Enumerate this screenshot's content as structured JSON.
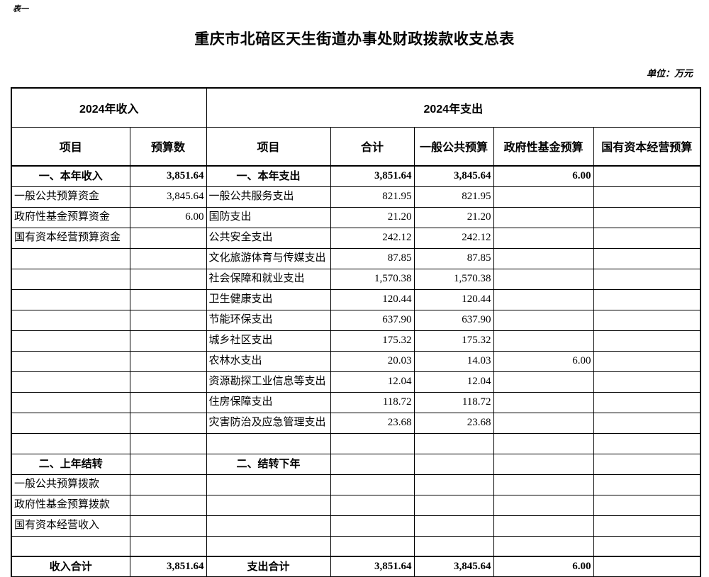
{
  "page": {
    "sheet_label": "表一",
    "title": "重庆市北碚区天生街道办事处财政拨款收支总表",
    "unit_note": "单位：万元"
  },
  "table": {
    "group_headers": {
      "income": "2024年收入",
      "expense": "2024年支出"
    },
    "column_headers": [
      "项目",
      "预算数",
      "项目",
      "合计",
      "一般公共预算",
      "政府性基金预算",
      "国有资本经营预算"
    ],
    "rows": [
      {
        "type": "section",
        "cells": [
          "一、本年收入",
          "3,851.64",
          "一、本年支出",
          "3,851.64",
          "3,845.64",
          "6.00",
          ""
        ]
      },
      {
        "type": "item",
        "cells": [
          "一般公共预算资金",
          "3,845.64",
          "一般公共服务支出",
          "821.95",
          "821.95",
          "",
          ""
        ]
      },
      {
        "type": "item",
        "cells": [
          "政府性基金预算资金",
          "6.00",
          "国防支出",
          "21.20",
          "21.20",
          "",
          ""
        ]
      },
      {
        "type": "item",
        "cells": [
          "国有资本经营预算资金",
          "",
          "公共安全支出",
          "242.12",
          "242.12",
          "",
          ""
        ]
      },
      {
        "type": "item",
        "cells": [
          "",
          "",
          "文化旅游体育与传媒支出",
          "87.85",
          "87.85",
          "",
          ""
        ]
      },
      {
        "type": "item",
        "cells": [
          "",
          "",
          "社会保障和就业支出",
          "1,570.38",
          "1,570.38",
          "",
          ""
        ]
      },
      {
        "type": "item",
        "cells": [
          "",
          "",
          "卫生健康支出",
          "120.44",
          "120.44",
          "",
          ""
        ]
      },
      {
        "type": "item",
        "cells": [
          "",
          "",
          "节能环保支出",
          "637.90",
          "637.90",
          "",
          ""
        ]
      },
      {
        "type": "item",
        "cells": [
          "",
          "",
          "城乡社区支出",
          "175.32",
          "175.32",
          "",
          ""
        ]
      },
      {
        "type": "item",
        "cells": [
          "",
          "",
          "农林水支出",
          "20.03",
          "14.03",
          "6.00",
          ""
        ]
      },
      {
        "type": "item",
        "cells": [
          "",
          "",
          "资源勘探工业信息等支出",
          "12.04",
          "12.04",
          "",
          ""
        ]
      },
      {
        "type": "item",
        "cells": [
          "",
          "",
          "住房保障支出",
          "118.72",
          "118.72",
          "",
          ""
        ]
      },
      {
        "type": "item",
        "cells": [
          "",
          "",
          "灾害防治及应急管理支出",
          "23.68",
          "23.68",
          "",
          ""
        ]
      },
      {
        "type": "empty",
        "cells": [
          "",
          "",
          "",
          "",
          "",
          "",
          ""
        ]
      },
      {
        "type": "section",
        "cells": [
          "二、上年结转",
          "",
          "二、结转下年",
          "",
          "",
          "",
          ""
        ]
      },
      {
        "type": "item",
        "cells": [
          "一般公共预算拨款",
          "",
          "",
          "",
          "",
          "",
          ""
        ]
      },
      {
        "type": "item",
        "cells": [
          "政府性基金预算拨款",
          "",
          "",
          "",
          "",
          "",
          ""
        ]
      },
      {
        "type": "item",
        "cells": [
          "国有资本经营收入",
          "",
          "",
          "",
          "",
          "",
          ""
        ]
      },
      {
        "type": "empty",
        "cells": [
          "",
          "",
          "",
          "",
          "",
          "",
          ""
        ]
      },
      {
        "type": "total",
        "cells": [
          "收入合计",
          "3,851.64",
          "支出合计",
          "3,851.64",
          "3,845.64",
          "6.00",
          ""
        ]
      }
    ]
  }
}
